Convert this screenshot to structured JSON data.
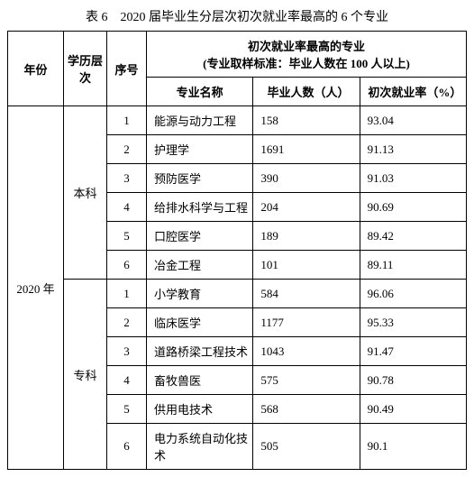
{
  "caption": "表 6　2020 届毕业生分层次初次就业率最高的 6 个专业",
  "headers": {
    "year": "年份",
    "level": "学历层次",
    "no": "序号",
    "group_line1": "初次就业率最高的专业",
    "group_line2": "(专业取样标准：毕业人数在 100 人以上)",
    "major": "专业名称",
    "count": "毕业人数（人）",
    "rate": "初次就业率（%）"
  },
  "year": "2020 年",
  "levels": [
    {
      "name": "本科",
      "rows": [
        {
          "no": "1",
          "major": "能源与动力工程",
          "count": "158",
          "rate": "93.04"
        },
        {
          "no": "2",
          "major": "护理学",
          "count": "1691",
          "rate": "91.13"
        },
        {
          "no": "3",
          "major": "预防医学",
          "count": "390",
          "rate": "91.03"
        },
        {
          "no": "4",
          "major": "给排水科学与工程",
          "count": "204",
          "rate": "90.69"
        },
        {
          "no": "5",
          "major": "口腔医学",
          "count": "189",
          "rate": "89.42"
        },
        {
          "no": "6",
          "major": "冶金工程",
          "count": "101",
          "rate": "89.11"
        }
      ]
    },
    {
      "name": "专科",
      "rows": [
        {
          "no": "1",
          "major": "小学教育",
          "count": "584",
          "rate": "96.06"
        },
        {
          "no": "2",
          "major": "临床医学",
          "count": "1177",
          "rate": "95.33"
        },
        {
          "no": "3",
          "major": "道路桥梁工程技术",
          "count": "1043",
          "rate": "91.47"
        },
        {
          "no": "4",
          "major": "畜牧兽医",
          "count": "575",
          "rate": "90.78"
        },
        {
          "no": "5",
          "major": "供用电技术",
          "count": "568",
          "rate": "90.49"
        },
        {
          "no": "6",
          "major": "电力系统自动化技术",
          "count": "505",
          "rate": "90.1"
        }
      ]
    }
  ]
}
